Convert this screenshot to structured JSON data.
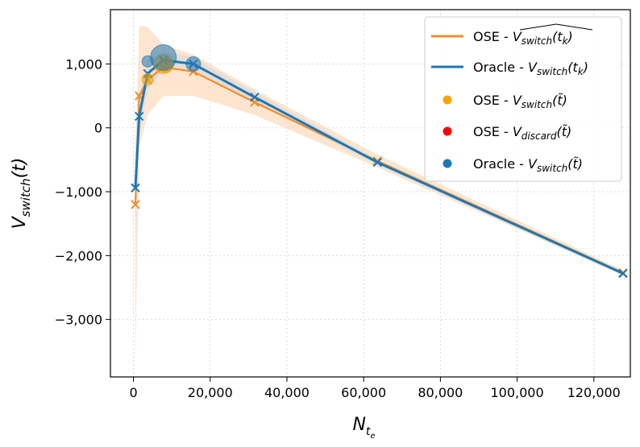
{
  "chart_data": {
    "type": "line",
    "xlabel": "N",
    "xlabel_sub": "t",
    "xlabel_subsub": "e",
    "ylabel": "V",
    "ylabel_sub": "switch",
    "ylabel_arg": "(t)",
    "xlim": [
      -6000,
      129500
    ],
    "ylim": [
      -3900,
      1850
    ],
    "xticks": [
      0,
      20000,
      40000,
      60000,
      80000,
      100000,
      120000
    ],
    "xtick_labels": [
      "0",
      "20,000",
      "40,000",
      "60,000",
      "80,000",
      "100,000",
      "120,000"
    ],
    "yticks": [
      -3000,
      -2000,
      -1000,
      0,
      1000
    ],
    "ytick_labels": [
      "−3,000",
      "−2,000",
      "−1,000",
      "0",
      "1,000"
    ],
    "grid": true,
    "legend_position": "top-right",
    "colors": {
      "ose": "#f28e2b",
      "oracle": "#1f77b4",
      "ose_point": "#f5a300",
      "discard": "#ff0000",
      "band": "#fde0c8"
    },
    "series": [
      {
        "name": "OSE",
        "color": "#f28e2b",
        "x": [
          500,
          1500,
          3700,
          7800,
          15600,
          31600,
          63600,
          127600
        ],
        "y": [
          -1200,
          500,
          750,
          950,
          880,
          400,
          -520,
          -2270
        ],
        "band_upper": [
          -400,
          1600,
          1580,
          1300,
          1150,
          600,
          -420,
          -2230
        ],
        "band_lower": [
          -3650,
          -300,
          200,
          500,
          500,
          200,
          -620,
          -2310
        ]
      },
      {
        "name": "Oracle",
        "color": "#1f77b4",
        "x": [
          500,
          1500,
          3700,
          7800,
          15600,
          31600,
          63600,
          127600
        ],
        "y": [
          -940,
          180,
          850,
          1060,
          1000,
          480,
          -540,
          -2280
        ],
        "band_upper": [
          -200,
          500,
          1100,
          1200,
          1100,
          560,
          -500,
          -2250
        ],
        "band_lower": [
          -1700,
          -100,
          600,
          900,
          900,
          400,
          -580,
          -2310
        ]
      }
    ],
    "scatter": [
      {
        "name": "OSE switch points",
        "color": "#f5a300",
        "points": [
          [
            3700,
            760
          ],
          [
            7800,
            1000
          ],
          [
            8500,
            980
          ]
        ]
      },
      {
        "name": "Oracle switch points",
        "color": "#1f77b4",
        "points": [
          [
            3700,
            1040
          ],
          [
            7800,
            1100
          ],
          [
            15600,
            1000
          ]
        ]
      }
    ],
    "legend": [
      {
        "kind": "line",
        "color": "#f28e2b",
        "label": "OSE - ",
        "math": "V",
        "sub": "switch",
        "arg": "(t",
        "argsub": "k",
        "close": ")",
        "hat": true
      },
      {
        "kind": "line",
        "color": "#1f77b4",
        "label": "Oracle - ",
        "math": "V",
        "sub": "switch",
        "arg": "(t",
        "argsub": "k",
        "close": ")",
        "hat": false
      },
      {
        "kind": "dot",
        "color": "#f5a300",
        "label": "OSE - ",
        "math": "V",
        "sub": "switch",
        "arg": "(t̃)",
        "hat": false
      },
      {
        "kind": "dot",
        "color": "#ff0000",
        "label": "OSE - ",
        "math": "V",
        "sub": "discard",
        "arg": "(t̃)",
        "hat": false
      },
      {
        "kind": "dot",
        "color": "#1f77b4",
        "label": "Oracle - ",
        "math": "V",
        "sub": "switch",
        "arg": "(t̃)",
        "hat": false
      }
    ]
  }
}
